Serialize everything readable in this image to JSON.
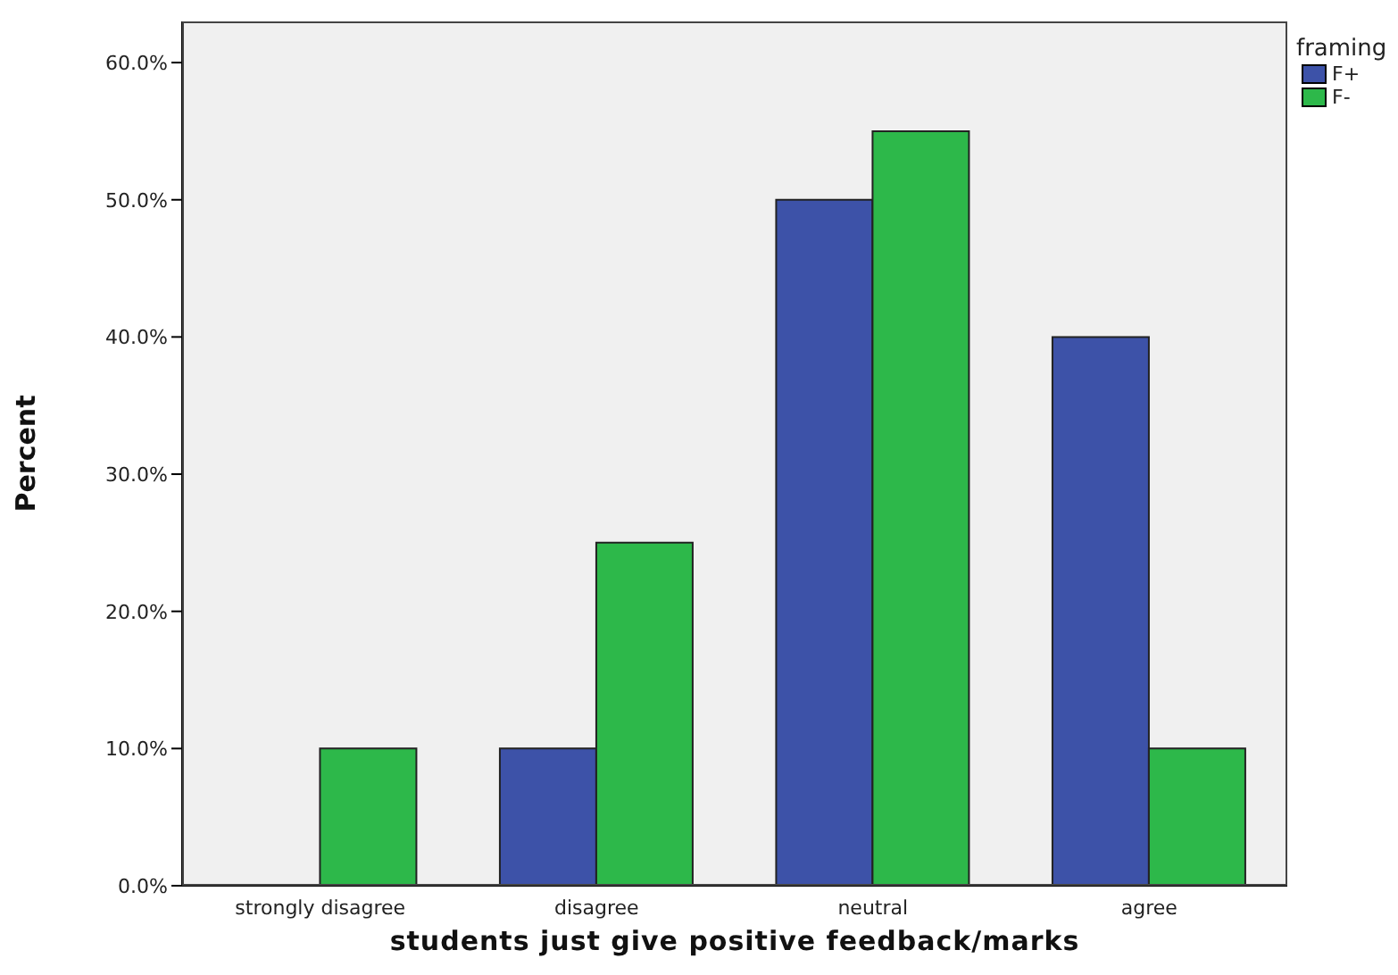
{
  "chart_data": {
    "type": "bar",
    "xlabel": "students just give positive feedback/marks",
    "ylabel": "Percent",
    "legend_title": "framing",
    "categories": [
      "strongly disagree",
      "disagree",
      "neutral",
      "agree"
    ],
    "series": [
      {
        "name": "F+",
        "color": "#3d52a8",
        "values": [
          0,
          10,
          50,
          40
        ]
      },
      {
        "name": "F-",
        "color": "#2db84a",
        "values": [
          10,
          25,
          55,
          10
        ]
      }
    ],
    "ylim": [
      0,
      63
    ],
    "yticks": [
      {
        "value": 0,
        "label": "0.0%"
      },
      {
        "value": 10,
        "label": "10.0%"
      },
      {
        "value": 20,
        "label": "20.0%"
      },
      {
        "value": 30,
        "label": "30.0%"
      },
      {
        "value": 40,
        "label": "40.0%"
      },
      {
        "value": 50,
        "label": "50.0%"
      },
      {
        "value": 60,
        "label": "60.0%"
      }
    ],
    "grid": false,
    "legend": "top right"
  }
}
